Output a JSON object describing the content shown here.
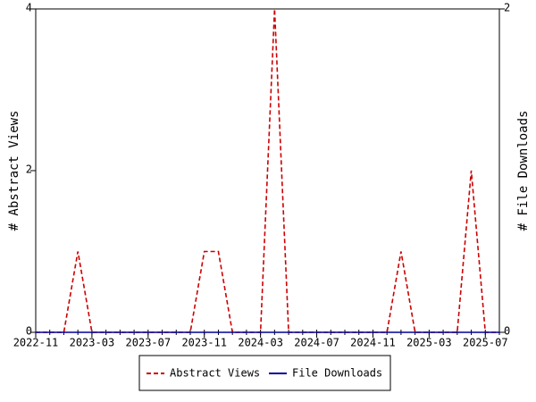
{
  "chart_data": {
    "type": "line",
    "x": [
      "2022-11",
      "2022-12",
      "2023-01",
      "2023-02",
      "2023-03",
      "2023-04",
      "2023-05",
      "2023-06",
      "2023-07",
      "2023-08",
      "2023-09",
      "2023-10",
      "2023-11",
      "2023-12",
      "2024-01",
      "2024-02",
      "2024-03",
      "2024-04",
      "2024-05",
      "2024-06",
      "2024-07",
      "2024-08",
      "2024-09",
      "2024-10",
      "2024-11",
      "2024-12",
      "2025-01",
      "2025-02",
      "2025-03",
      "2025-04",
      "2025-05",
      "2025-06",
      "2025-07",
      "2025-08"
    ],
    "series": [
      {
        "name": "Abstract Views",
        "color": "#cc0000",
        "dashed": true,
        "axis": "y",
        "values": [
          0,
          0,
          0,
          1,
          0,
          0,
          0,
          0,
          0,
          0,
          0,
          0,
          1,
          1,
          0,
          0,
          0,
          4,
          0,
          0,
          0,
          0,
          0,
          0,
          0,
          0,
          1,
          0,
          0,
          0,
          0,
          2,
          0,
          0
        ]
      },
      {
        "name": "File Downloads",
        "color": "#000099",
        "dashed": false,
        "axis": "y2",
        "values": [
          0,
          0,
          0,
          0,
          0,
          0,
          0,
          0,
          0,
          0,
          0,
          0,
          0,
          0,
          0,
          0,
          0,
          0,
          0,
          0,
          0,
          0,
          0,
          0,
          0,
          0,
          0,
          0,
          0,
          0,
          0,
          0,
          0,
          0
        ]
      }
    ],
    "ylabel": "# Abstract Views",
    "y2label": "# File Downloads",
    "xlim": [
      "2022-11",
      "2025-08"
    ],
    "xticks": [
      "2022-11",
      "2023-03",
      "2023-07",
      "2023-11",
      "2024-03",
      "2024-07",
      "2024-11",
      "2025-03",
      "2025-07"
    ],
    "ylim": [
      0,
      4
    ],
    "yticks": [
      0,
      2,
      4
    ],
    "y2lim": [
      0,
      2
    ],
    "y2ticks": [
      0,
      2
    ],
    "legend": "bottom"
  }
}
